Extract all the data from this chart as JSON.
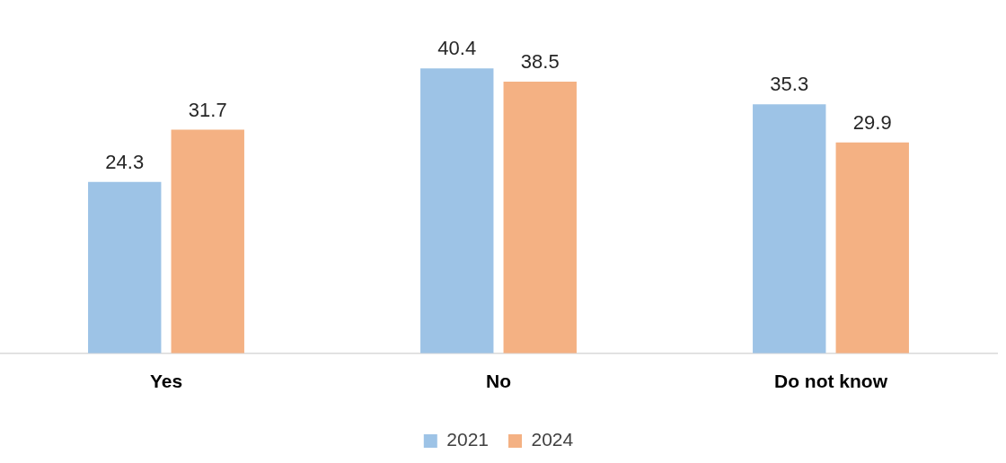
{
  "chart_data": {
    "type": "bar",
    "categories": [
      "Yes",
      "No",
      "Do not know"
    ],
    "series": [
      {
        "name": "2021",
        "color": "#9dc3e6",
        "values": [
          24.3,
          40.4,
          35.3
        ]
      },
      {
        "name": "2024",
        "color": "#f4b183",
        "values": [
          31.7,
          38.5,
          29.9
        ]
      }
    ],
    "tick_labels": "x",
    "data_labels": true,
    "legend": "bottom",
    "grid": false
  }
}
